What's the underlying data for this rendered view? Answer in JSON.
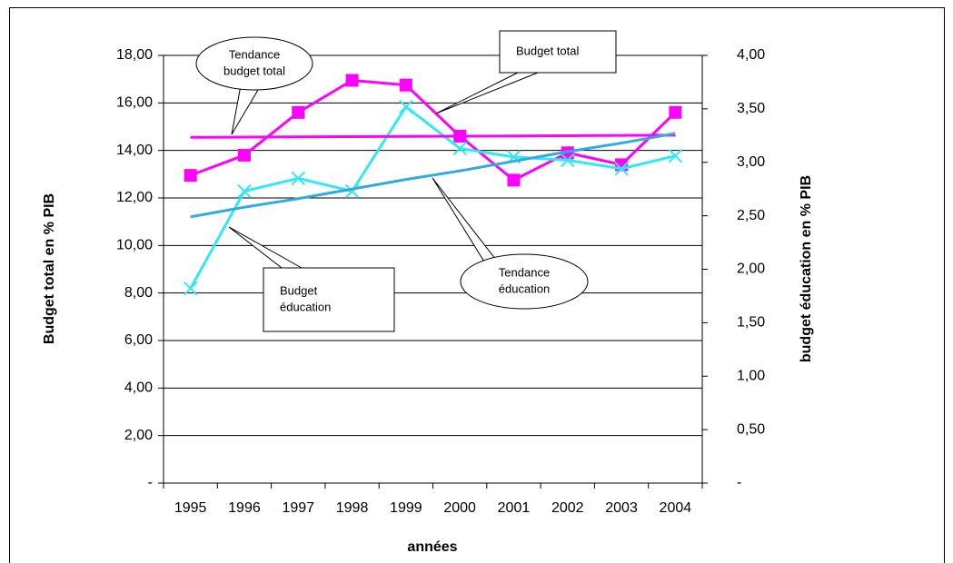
{
  "chart_data": {
    "type": "line",
    "categories": [
      "1995",
      "1996",
      "1997",
      "1998",
      "1999",
      "2000",
      "2001",
      "2002",
      "2003",
      "2004"
    ],
    "x_label": "années",
    "y_label": "Budget total en % PIB",
    "y2_label": "budget éducation en % PIB",
    "ylim": [
      0,
      18
    ],
    "yticks": [
      {
        "value": 0,
        "label": "-"
      },
      {
        "value": 2,
        "label": "2,00"
      },
      {
        "value": 4,
        "label": "4,00"
      },
      {
        "value": 6,
        "label": "6,00"
      },
      {
        "value": 8,
        "label": "8,00"
      },
      {
        "value": 10,
        "label": "10,00"
      },
      {
        "value": 12,
        "label": "12,00"
      },
      {
        "value": 14,
        "label": "14,00"
      },
      {
        "value": 16,
        "label": "16,00"
      },
      {
        "value": 18,
        "label": "18,00"
      }
    ],
    "y2lim": [
      0,
      4
    ],
    "y2ticks": [
      {
        "value": 0,
        "label": "-"
      },
      {
        "value": 0.5,
        "label": "0,50"
      },
      {
        "value": 1,
        "label": "1,00"
      },
      {
        "value": 1.5,
        "label": "1,50"
      },
      {
        "value": 2,
        "label": "2,00"
      },
      {
        "value": 2.5,
        "label": "2,50"
      },
      {
        "value": 3,
        "label": "3,00"
      },
      {
        "value": 3.5,
        "label": "3,50"
      },
      {
        "value": 4,
        "label": "4,00"
      }
    ],
    "grid": true,
    "series": [
      {
        "color": "#ff00ff",
        "marker": "square",
        "values": [
          12.95,
          13.8,
          15.6,
          16.95,
          16.75,
          14.6,
          12.75,
          13.9,
          13.4,
          15.6
        ]
      },
      {
        "color": "#33e8f0",
        "marker": "x",
        "axis": "y2",
        "values": [
          1.82,
          2.73,
          2.85,
          2.73,
          3.52,
          3.13,
          3.05,
          3.02,
          2.94,
          3.06
        ]
      },
      {
        "color": "#ff00ff",
        "marker": "none",
        "values": [
          14.55,
          14.56,
          14.57,
          14.58,
          14.59,
          14.6,
          14.61,
          14.62,
          14.63,
          14.64
        ]
      },
      {
        "color": "#33aadd",
        "marker": "none",
        "axis": "y2",
        "values": [
          2.49,
          2.58,
          2.66,
          2.75,
          2.84,
          2.92,
          3.01,
          3.1,
          3.18,
          3.27
        ]
      }
    ],
    "annotations": [
      {
        "lines": [
          "Tendance",
          "budget total"
        ]
      },
      {
        "lines": [
          "Budget total"
        ]
      },
      {
        "lines": [
          "Budget",
          "éducation"
        ]
      },
      {
        "lines": [
          "Tendance",
          "éducation"
        ]
      }
    ]
  }
}
